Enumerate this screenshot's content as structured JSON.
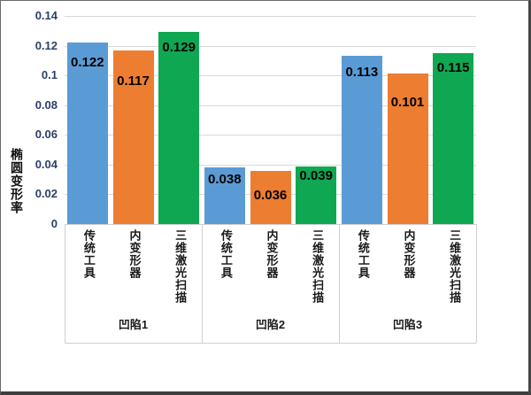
{
  "chart_data": {
    "type": "bar",
    "title": "",
    "xlabel": "",
    "ylabel": "椭圆变形率",
    "ylim": [
      0,
      0.14
    ],
    "ytick_step": 0.02,
    "yticks": [
      "0",
      "0.02",
      "0.04",
      "0.06",
      "0.08",
      "0.1",
      "0.12",
      "0.14"
    ],
    "grid": true,
    "legend_position": "none",
    "groups": [
      "凹陷1",
      "凹陷2",
      "凹陷3"
    ],
    "series": [
      {
        "name": "传统工具",
        "color": "#5B9BD5",
        "values": [
          0.122,
          0.038,
          0.113
        ],
        "labels": [
          "0.122",
          "0.038",
          "0.113"
        ]
      },
      {
        "name": "内变形器",
        "color": "#ED7D31",
        "values": [
          0.117,
          0.036,
          0.101
        ],
        "labels": [
          "0.117",
          "0.036",
          "0.101"
        ]
      },
      {
        "name": "三维激光扫描",
        "color": "#0FA751",
        "values": [
          0.129,
          0.039,
          0.115
        ],
        "labels": [
          "0.129",
          "0.039",
          "0.115"
        ]
      }
    ],
    "colors": {
      "gridline": "#D9D9D9",
      "axis_line": "#D0D0D0",
      "tick_label": "#2B4168",
      "value_label": "#000000",
      "category_label": "#1A1A1A"
    }
  }
}
